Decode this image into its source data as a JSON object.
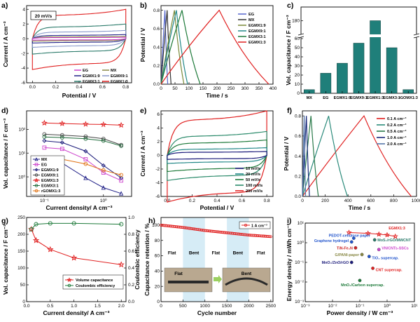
{
  "chart_data": [
    {
      "panel": "a",
      "type": "line",
      "xlabel": "Potential / V",
      "ylabel": "Current / A cm⁻³",
      "xlim": [
        -0.05,
        0.85
      ],
      "ylim": [
        -6,
        4.5
      ],
      "xticks": [
        "0.0",
        "0.2",
        "0.4",
        "0.6",
        "0.8"
      ],
      "yticks": [
        "-6",
        "-4",
        "-2",
        "0",
        "2",
        "4"
      ],
      "annotation": "20 mV/s",
      "series": [
        {
          "name": "EG",
          "color": "#cc44cc",
          "amp": 0.15,
          "box": 0.3
        },
        {
          "name": "MX",
          "color": "#888844",
          "amp": 0.25,
          "box": 0.5
        },
        {
          "name": "EGMX1:9",
          "color": "#222288",
          "amp": 0.45,
          "box": 0.6
        },
        {
          "name": "EGMX9:1",
          "color": "#8899cc",
          "amp": 0.9,
          "box": 0.7
        },
        {
          "name": "EGMX3:1",
          "color": "#2a7a6a",
          "amp": 1.6,
          "box": 0.75
        },
        {
          "name": "EGMX1:3",
          "color": "#e02020",
          "amp": 3.2,
          "box": 0.82
        }
      ]
    },
    {
      "panel": "b",
      "type": "line",
      "xlabel": "Time / s",
      "ylabel": "Potential / V",
      "xlim": [
        0,
        400
      ],
      "ylim": [
        0,
        0.85
      ],
      "xticks": [
        "0",
        "50",
        "100",
        "150",
        "200",
        "250",
        "300",
        "350",
        "400"
      ],
      "yticks": [
        "0.0",
        "0.2",
        "0.4",
        "0.6",
        "0.8"
      ],
      "series": [
        {
          "name": "EG",
          "color": "#5566cc",
          "tpeak": 14,
          "tend": 24
        },
        {
          "name": "MX",
          "color": "#333333",
          "tpeak": 22,
          "tend": 36
        },
        {
          "name": "EGMX1:9",
          "color": "#7a8a3a",
          "tpeak": 48,
          "tend": 82
        },
        {
          "name": "EGMX9:1",
          "color": "#228888",
          "tpeak": 55,
          "tend": 95
        },
        {
          "name": "EGMX3:1",
          "color": "#1e7a3a",
          "tpeak": 75,
          "tend": 140
        },
        {
          "name": "EGMX1:3",
          "color": "#e02020",
          "tpeak": 208,
          "tend": 385
        }
      ]
    },
    {
      "panel": "c",
      "type": "bar",
      "ylabel": "Vol. capacitance / F cm⁻³",
      "categories": [
        "MX",
        "EG",
        "EGMX1:9",
        "EGMX9:1",
        "EGMX1:3",
        "EGMX3:1",
        "rGOMX1:3"
      ],
      "values": [
        4,
        22,
        33,
        55,
        180,
        50,
        4
      ],
      "yticks": [
        "0",
        "10",
        "20",
        "30",
        "40",
        "50",
        "60",
        "180"
      ],
      "bar_color": "#1f7f7a"
    },
    {
      "panel": "d",
      "type": "line",
      "xlabel": "Current density/ A cm⁻³",
      "ylabel": "Vol. capacitance / F cm⁻³",
      "xscale": "log",
      "yscale": "log",
      "xlim": [
        0.05,
        3
      ],
      "ylim": [
        0.15,
        600
      ],
      "xticks": [
        "10⁻¹",
        "10⁰"
      ],
      "yticks": [
        "10⁰",
        "10¹",
        "10²"
      ],
      "series": [
        {
          "name": "MX",
          "color": "#222288",
          "marker": "triangle",
          "x": [
            0.1,
            0.2,
            0.5,
            1,
            2
          ],
          "y": [
            4,
            3.8,
            0.9,
            0.35,
            0.2
          ]
        },
        {
          "name": "EG",
          "color": "#cc44cc",
          "marker": "square",
          "x": [
            0.1,
            0.2,
            0.5,
            1,
            2
          ],
          "y": [
            17,
            15,
            5.5,
            1.5,
            0.7
          ]
        },
        {
          "name": "EGMX1:9",
          "color": "#1a1a7a",
          "marker": "diamond",
          "x": [
            0.1,
            0.2,
            0.5,
            1,
            2
          ],
          "y": [
            33,
            28,
            12,
            3,
            0.9
          ]
        },
        {
          "name": "EGMX9:1",
          "color": "#444444",
          "marker": "circle",
          "x": [
            0.1,
            0.2,
            0.5,
            1,
            2
          ],
          "y": [
            62,
            57,
            50,
            40,
            22
          ]
        },
        {
          "name": "EGMX1:3",
          "color": "#e02020",
          "marker": "star",
          "x": [
            0.1,
            0.2,
            0.5,
            1,
            2
          ],
          "y": [
            185,
            175,
            165,
            160,
            150
          ]
        },
        {
          "name": "EGMX3:1",
          "color": "#1e6a3a",
          "marker": "circle",
          "x": [
            0.1,
            0.2,
            0.5,
            1,
            2
          ],
          "y": [
            48,
            45,
            40,
            33,
            20
          ]
        },
        {
          "name": "rGOMX1:3",
          "color": "#e07010",
          "marker": "circle",
          "x": [
            0.1,
            0.2,
            0.5,
            1,
            2
          ],
          "y": [
            6.5,
            5.5,
            3.5,
            1.9,
            1.2
          ]
        }
      ]
    },
    {
      "panel": "e",
      "type": "line",
      "xlabel": "Potential / V",
      "ylabel": "Current / A cm⁻³",
      "xlim": [
        -0.05,
        0.85
      ],
      "ylim": [
        -6,
        6.5
      ],
      "xticks": [
        "0.0",
        "0.2",
        "0.4",
        "0.6",
        "0.8"
      ],
      "yticks": [
        "-6",
        "-4",
        "-2",
        "0",
        "2",
        "4",
        "6"
      ],
      "series": [
        {
          "name": "10 mV/s",
          "color": "#1a1a7a",
          "amp": 0.45
        },
        {
          "name": "20 mV/s",
          "color": "#228888",
          "amp": 0.9
        },
        {
          "name": "50 mV/s",
          "color": "#1e7a3a",
          "amp": 1.8
        },
        {
          "name": "100 mV/s",
          "color": "#2a8a6a",
          "amp": 2.8
        },
        {
          "name": "200 mV/s",
          "color": "#e02020",
          "amp": 5.2
        }
      ]
    },
    {
      "panel": "f",
      "type": "line",
      "xlabel": "Time / s",
      "ylabel": "Potential / V",
      "xlim": [
        0,
        1000
      ],
      "ylim": [
        0,
        0.85
      ],
      "xticks": [
        "0",
        "200",
        "400",
        "600",
        "800",
        "1000"
      ],
      "yticks": [
        "0.0",
        "0.2",
        "0.4",
        "0.6",
        "0.8"
      ],
      "series": [
        {
          "name": "0.1 A cm⁻³",
          "color": "#e02020",
          "tpeak": 540,
          "tend": 955
        },
        {
          "name": "0.2 A cm⁻³",
          "color": "#2a8a7a",
          "tpeak": 230,
          "tend": 395
        },
        {
          "name": "0.5 A cm⁻³",
          "color": "#2a7a4a",
          "tpeak": 75,
          "tend": 140
        },
        {
          "name": "1.0 A cm⁻³",
          "color": "#1a2a7a",
          "tpeak": 35,
          "tend": 62
        },
        {
          "name": "2.0 A cm⁻³",
          "color": "#5577aa",
          "tpeak": 16,
          "tend": 28
        }
      ]
    },
    {
      "panel": "g",
      "type": "line",
      "xlabel": "Current density/ A cm⁻³",
      "ylabel": "Vol. capacitance / F cm⁻³",
      "ylabel2": "Coulombic efficiency",
      "xlim": [
        0,
        2.1
      ],
      "ylim": [
        0,
        250
      ],
      "y2lim": [
        0,
        1.0
      ],
      "xticks": [
        "0.0",
        "0.5",
        "1.0",
        "1.5",
        "2.0"
      ],
      "yticks": [
        "0",
        "50",
        "100",
        "150",
        "200",
        "250"
      ],
      "y2ticks": [
        "0.0",
        "0.2",
        "0.4",
        "0.6",
        "0.8",
        "1.0"
      ],
      "series": [
        {
          "name": "Volume capacitance",
          "color": "#e02020",
          "marker": "star",
          "axis": "left",
          "x": [
            0.1,
            0.2,
            0.5,
            1,
            2
          ],
          "y": [
            215,
            182,
            155,
            130,
            110
          ]
        },
        {
          "name": "Coulombic efficiency",
          "color": "#1e7a3a",
          "marker": "circle",
          "axis": "right",
          "x": [
            0.1,
            0.2,
            0.5,
            1,
            2
          ],
          "y": [
            0.86,
            0.92,
            0.93,
            0.93,
            0.92
          ]
        }
      ]
    },
    {
      "panel": "h",
      "type": "line",
      "xlabel": "Cycle number",
      "ylabel": "Capacitance retention / %",
      "xlim": [
        0,
        2550
      ],
      "ylim": [
        0,
        110
      ],
      "xticks": [
        "0",
        "500",
        "1000",
        "1500",
        "2000",
        "2500"
      ],
      "yticks": [
        "0",
        "20",
        "40",
        "60",
        "80",
        "100"
      ],
      "legend": "1 A cm⁻³",
      "series": [
        {
          "name": "1 A cm⁻³",
          "color": "#e02020",
          "x": [
            0,
            500,
            1000,
            1500,
            2000,
            2500
          ],
          "y": [
            100,
            97,
            93,
            90,
            87,
            85
          ]
        }
      ],
      "regions": [
        {
          "label": "Flat",
          "from": 0,
          "to": 500,
          "shade": false
        },
        {
          "label": "Bent",
          "from": 500,
          "to": 1000,
          "shade": true
        },
        {
          "label": "Flat",
          "from": 1000,
          "to": 1500,
          "shade": false
        },
        {
          "label": "Bent",
          "from": 1500,
          "to": 2000,
          "shade": true
        },
        {
          "label": "Flat",
          "from": 2000,
          "to": 2550,
          "shade": false
        }
      ],
      "inset_labels": [
        "Flat",
        "Bent"
      ]
    },
    {
      "panel": "i",
      "type": "scatter",
      "xlabel": "Power density / W cm⁻³",
      "ylabel": "Energy density / mWh cm⁻³",
      "xscale": "log",
      "yscale": "log",
      "xlim": [
        0.001,
        10
      ],
      "ylim": [
        0.001,
        10
      ],
      "xticks": [
        "10⁻³",
        "10⁻²",
        "10⁻¹",
        "10⁰",
        "10¹"
      ],
      "yticks": [
        "10⁻³",
        "10⁻²",
        "10⁻¹",
        "10⁰",
        "10¹"
      ],
      "series": [
        {
          "name": "EGMX1:3",
          "color": "#e02020",
          "x": [
            0.04,
            0.2,
            0.5,
            1,
            2
          ],
          "y": [
            3.3,
            3.0,
            2.7,
            2.5,
            2.1
          ]
        }
      ],
      "points": [
        {
          "label": "EGMX1:3",
          "x": 0.9,
          "y": 3.8,
          "color": "#e02020"
        },
        {
          "label": "PEDOT-cellulose paper",
          "x": 0.06,
          "y": 1.7,
          "color": "#2255cc"
        },
        {
          "label": "Graphene hydrogel",
          "x": 0.05,
          "y": 1.1,
          "color": "#2255cc"
        },
        {
          "label": "MoS₂/rGO/MWCNT",
          "x": 0.35,
          "y": 1.4,
          "color": "#2a7a6a"
        },
        {
          "label": "TiN-Fe₂N",
          "x": 0.07,
          "y": 0.55,
          "color": "#cc2222"
        },
        {
          "label": "VN/CNTs-SSCs",
          "x": 0.5,
          "y": 0.45,
          "color": "#cc44cc"
        },
        {
          "label": "G/PANI-paper",
          "x": 0.12,
          "y": 0.25,
          "color": "#888844"
        },
        {
          "label": "TiO₂ supercap.",
          "x": 0.22,
          "y": 0.2,
          "color": "#2255cc"
        },
        {
          "label": "MnO₂/ZnO/rGO",
          "x": 0.05,
          "y": 0.1,
          "color": "#1a1a7a"
        },
        {
          "label": "CNT supercap.",
          "x": 0.3,
          "y": 0.05,
          "color": "#e02020"
        },
        {
          "label": "MnO₂/Carbon supercap.",
          "x": 0.1,
          "y": 0.012,
          "color": "#1e7a3a"
        }
      ]
    }
  ]
}
